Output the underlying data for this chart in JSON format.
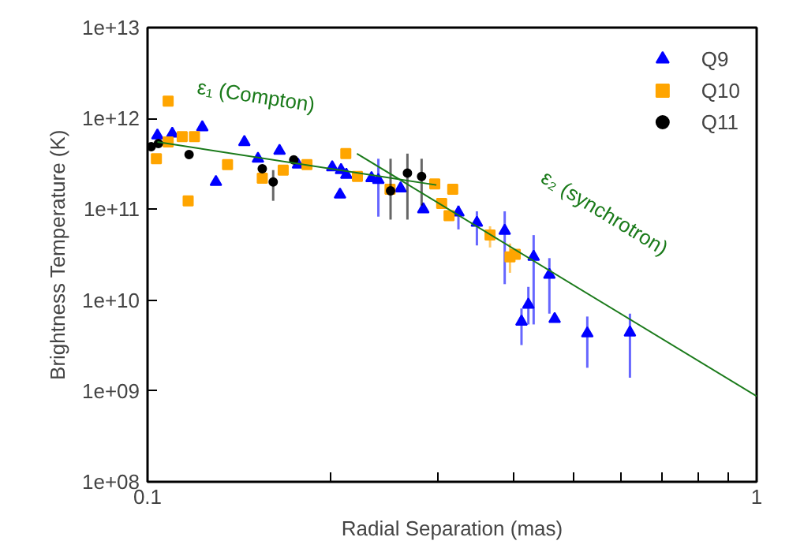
{
  "chart_data": {
    "type": "scatter",
    "xlabel": "Radial Separation (mas)",
    "ylabel": "Brightness Temperature (K)",
    "log": "xy",
    "xlim": [
      0.1,
      1
    ],
    "ylim": [
      100000000.0,
      10000000000000.0
    ],
    "xticks": [
      0.1,
      {
        "value": 0.2,
        "label": null
      },
      {
        "value": 0.3,
        "label": null
      },
      {
        "value": 0.4,
        "label": null
      },
      {
        "value": 0.5,
        "label": null
      },
      {
        "value": 0.6,
        "label": null
      },
      {
        "value": 0.7,
        "label": null
      },
      {
        "value": 0.8,
        "label": null
      },
      {
        "value": 0.9,
        "label": null
      },
      1
    ],
    "yticks": [
      {
        "value": 100000000.0,
        "label": "1e+08"
      },
      {
        "value": 1000000000.0,
        "label": "1e+09"
      },
      {
        "value": 10000000000.0,
        "label": "1e+10"
      },
      {
        "value": 100000000000.0,
        "label": "1e+11"
      },
      {
        "value": 1000000000000.0,
        "label": "1e+12"
      },
      {
        "value": 10000000000000.0,
        "label": "1e+13"
      }
    ],
    "grid": false,
    "legend": "top right",
    "series": [
      {
        "name": "Q9",
        "color": "#0000ff",
        "marker": "triangle",
        "x": [
          0.1038,
          0.1098,
          0.123,
          0.1295,
          0.1442,
          0.1518,
          0.1647,
          0.1766,
          0.201,
          0.2078,
          0.207,
          0.212,
          0.2332,
          0.2393,
          0.2603,
          0.2836,
          0.3239,
          0.3473,
          0.3858,
          0.4111,
          0.4219,
          0.4304,
          0.4568,
          0.466,
          0.5272,
          0.6194
        ],
        "values": [
          650000000000.0,
          680000000000.0,
          800000000000.0,
          200000000000.0,
          550000000000.0,
          360000000000.0,
          440000000000.0,
          310000000000.0,
          290000000000.0,
          270000000000.0,
          145000000000.0,
          240000000000.0,
          220000000000.0,
          210000000000.0,
          170000000000.0,
          100000000000.0,
          92000000000.0,
          71000000000.0,
          58000000000.0,
          5800000000.0,
          8900000000.0,
          30000000000.0,
          19000000000.0,
          6200000000.0,
          4300000000.0,
          4400000000.0
        ],
        "errors": [
          null,
          null,
          null,
          null,
          null,
          null,
          null,
          null,
          null,
          null,
          null,
          null,
          null,
          [
            83000000000.0,
            360000000000.0
          ],
          null,
          null,
          [
            60000000000.0,
            110000000000.0
          ],
          [
            40000000000.0,
            95000000000.0
          ],
          [
            15000000000.0,
            95000000000.0
          ],
          [
            3200000000.0,
            8100000000.0
          ],
          [
            5400000000.0,
            14000000000.0
          ],
          [
            5400000000.0,
            52000000000.0
          ],
          [
            7100000000.0,
            29000000000.0
          ],
          null,
          [
            1800000000.0,
            6600000000.0
          ],
          [
            1400000000.0,
            7100000000.0
          ]
        ]
      },
      {
        "name": "Q10",
        "color": "#ffa500",
        "marker": "square",
        "x": [
          0.1081,
          0.1034,
          0.1081,
          0.114,
          0.1194,
          0.1166,
          0.1353,
          0.1543,
          0.167,
          0.1827,
          0.2116,
          0.2211,
          0.2501,
          0.2962,
          0.304,
          0.3126,
          0.317,
          0.365,
          0.3936,
          0.4015
        ],
        "values": [
          1550000000000.0,
          360000000000.0,
          550000000000.0,
          630000000000.0,
          630000000000.0,
          124000000000.0,
          310000000000.0,
          220000000000.0,
          270000000000.0,
          310000000000.0,
          410000000000.0,
          230000000000.0,
          166000000000.0,
          190000000000.0,
          116000000000.0,
          85000000000.0,
          166000000000.0,
          52000000000.0,
          30000000000.0,
          32000000000.0
        ],
        "errors": [
          null,
          null,
          null,
          null,
          null,
          null,
          null,
          null,
          null,
          null,
          null,
          null,
          null,
          null,
          null,
          null,
          null,
          [
            38000000000.0,
            65000000000.0
          ],
          [
            20000000000.0,
            42000000000.0
          ],
          null
        ]
      },
      {
        "name": "Q11",
        "color": "#000000",
        "marker": "circle",
        "x": [
          0.1014,
          0.1042,
          0.117,
          0.1543,
          0.1608,
          0.1738,
          0.2506,
          0.2671,
          0.2818
        ],
        "values": [
          490000000000.0,
          530000000000.0,
          400000000000.0,
          280000000000.0,
          200000000000.0,
          350000000000.0,
          160000000000.0,
          250000000000.0,
          230000000000.0
        ],
        "errors": [
          null,
          null,
          null,
          null,
          [
            124000000000.0,
            270000000000.0
          ],
          null,
          [
            77000000000.0,
            360000000000.0
          ],
          [
            77000000000.0,
            410000000000.0
          ],
          [
            110000000000.0,
            360000000000.0
          ]
        ]
      },
      {
        "type": "line",
        "name": "ε₁ (Compton)",
        "color": "#1a7a1a",
        "x": [
          0.1038,
          0.298
        ],
        "values": [
          550000000000.0,
          185000000000.0
        ]
      },
      {
        "type": "line",
        "name": "ε₂ (synchrotron)",
        "color": "#1a7a1a",
        "x": [
          0.2207,
          1
        ],
        "values": [
          410000000000.0,
          875000000.0
        ]
      }
    ]
  }
}
